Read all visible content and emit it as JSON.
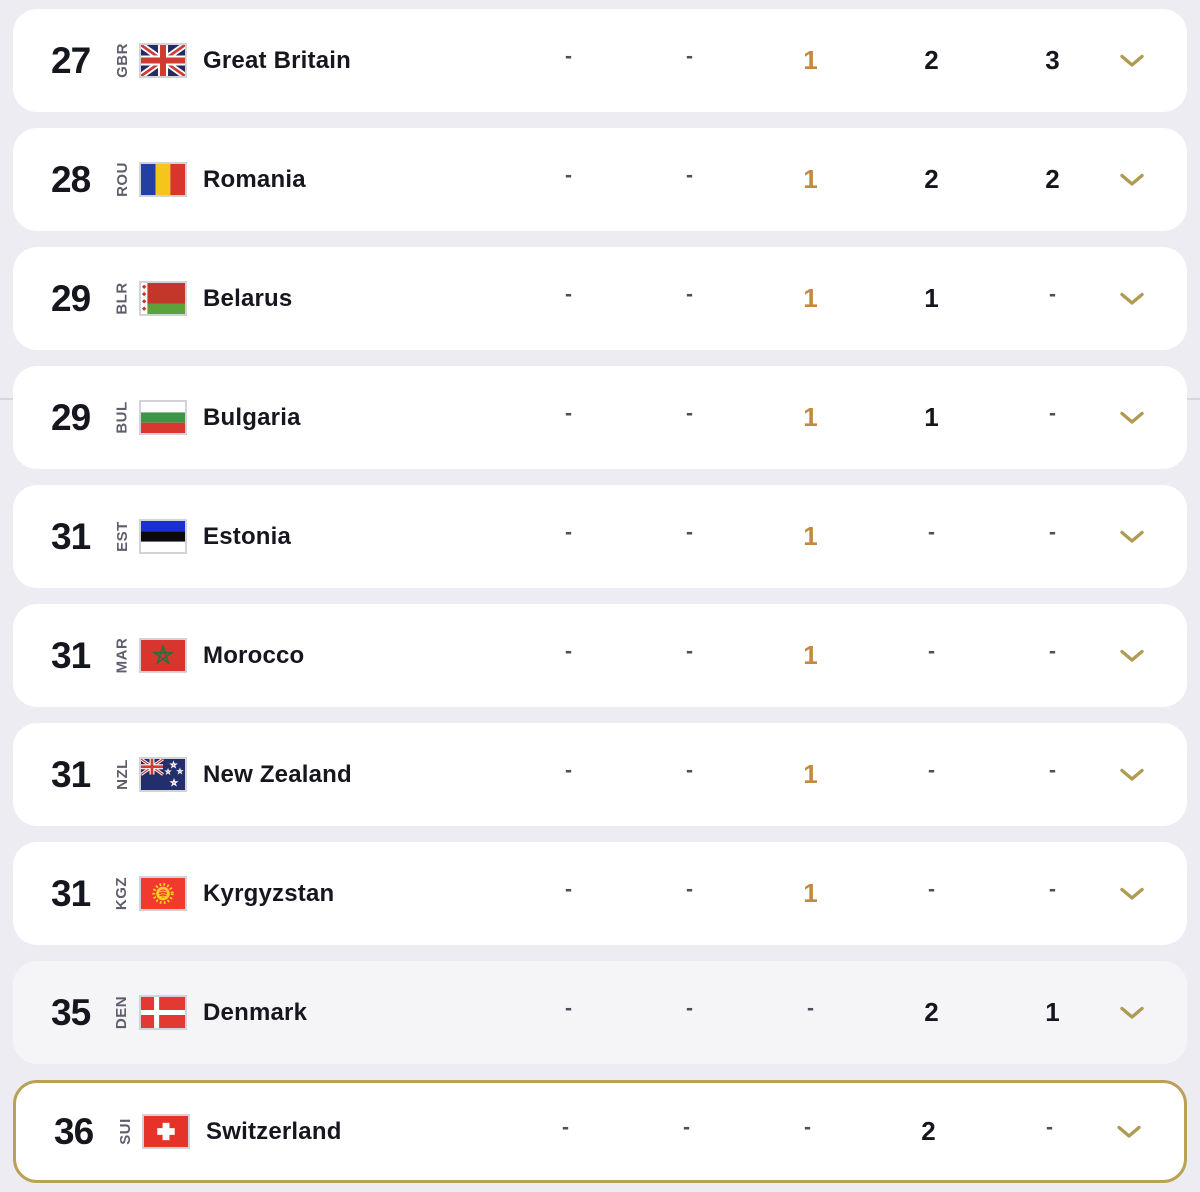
{
  "colors": {
    "page_bg": "#ECECF2",
    "card_bg": "#FFFFFF",
    "card_muted_bg": "#F5F5F8",
    "text_primary": "#16161F",
    "noc_code_text": "#5E5E6C",
    "dash_text": "#4E4E5C",
    "gold_highlight_text": "#C6883F",
    "chevron_gold": "#AF9C52",
    "selected_border_gold": "#B9A257",
    "background_divider": "#D5D5DB",
    "flag_border": "#D2D2D9"
  },
  "table": {
    "highlight_column_index": 2,
    "expand_icon": "chevron-down-icon",
    "rows": [
      {
        "rank": "27",
        "code": "GBR",
        "country": "Great Britain",
        "flag": "gbr",
        "values": [
          "-",
          "-",
          "1",
          "2",
          "3"
        ],
        "muted": false,
        "selected": false
      },
      {
        "rank": "28",
        "code": "ROU",
        "country": "Romania",
        "flag": "rou",
        "values": [
          "-",
          "-",
          "1",
          "2",
          "2"
        ],
        "muted": false,
        "selected": false
      },
      {
        "rank": "29",
        "code": "BLR",
        "country": "Belarus",
        "flag": "blr",
        "values": [
          "-",
          "-",
          "1",
          "1",
          "-"
        ],
        "muted": false,
        "selected": false
      },
      {
        "rank": "29",
        "code": "BUL",
        "country": "Bulgaria",
        "flag": "bul",
        "values": [
          "-",
          "-",
          "1",
          "1",
          "-"
        ],
        "muted": false,
        "selected": false
      },
      {
        "rank": "31",
        "code": "EST",
        "country": "Estonia",
        "flag": "est",
        "values": [
          "-",
          "-",
          "1",
          "-",
          "-"
        ],
        "muted": false,
        "selected": false
      },
      {
        "rank": "31",
        "code": "MAR",
        "country": "Morocco",
        "flag": "mar",
        "values": [
          "-",
          "-",
          "1",
          "-",
          "-"
        ],
        "muted": false,
        "selected": false
      },
      {
        "rank": "31",
        "code": "NZL",
        "country": "New Zealand",
        "flag": "nzl",
        "values": [
          "-",
          "-",
          "1",
          "-",
          "-"
        ],
        "muted": false,
        "selected": false
      },
      {
        "rank": "31",
        "code": "KGZ",
        "country": "Kyrgyzstan",
        "flag": "kgz",
        "values": [
          "-",
          "-",
          "1",
          "-",
          "-"
        ],
        "muted": false,
        "selected": false
      },
      {
        "rank": "35",
        "code": "DEN",
        "country": "Denmark",
        "flag": "den",
        "values": [
          "-",
          "-",
          "-",
          "2",
          "1"
        ],
        "muted": true,
        "selected": false
      },
      {
        "rank": "36",
        "code": "SUI",
        "country": "Switzerland",
        "flag": "sui",
        "values": [
          "-",
          "-",
          "-",
          "2",
          "-"
        ],
        "muted": false,
        "selected": true
      }
    ]
  }
}
